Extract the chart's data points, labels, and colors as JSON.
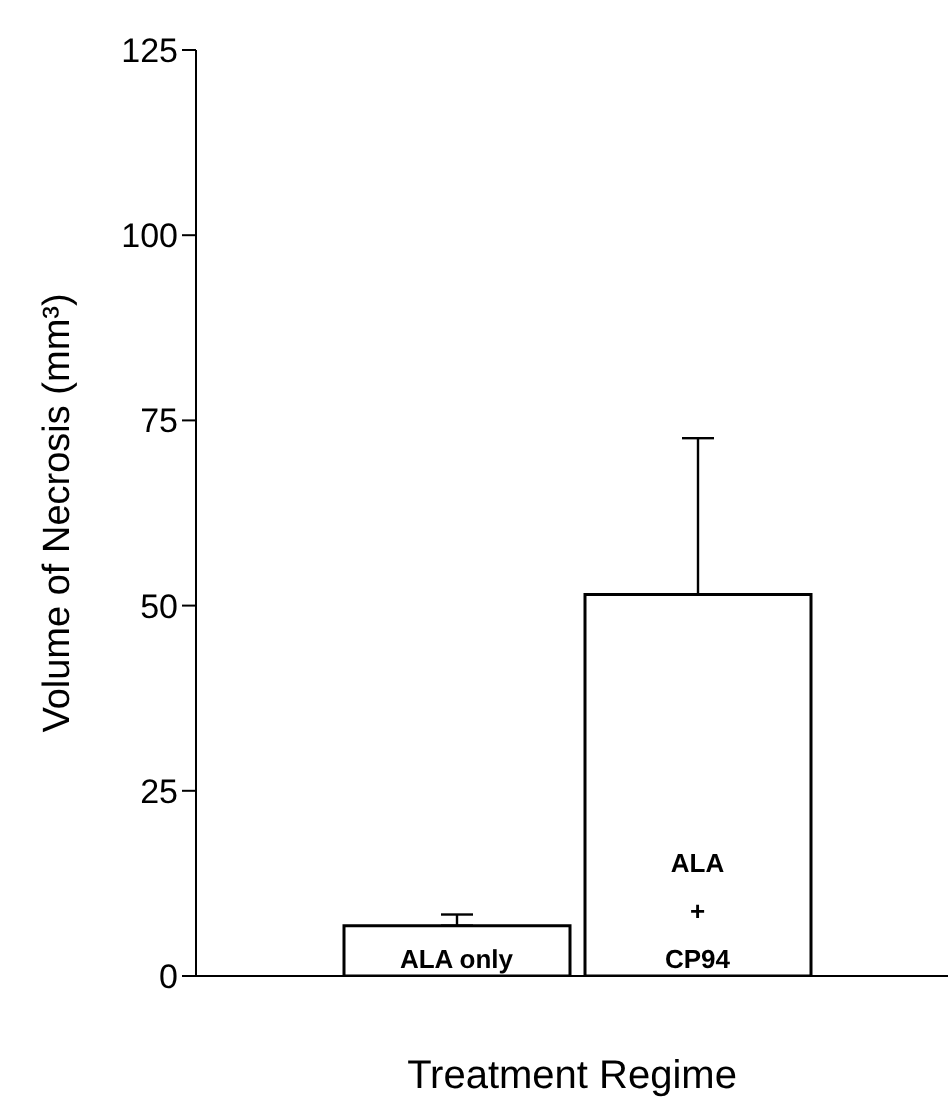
{
  "chart_data": {
    "type": "bar",
    "xlabel": "Treatment Regime",
    "ylabel": "Volume of Necrosis (mm³)",
    "categories": [
      "ALA only",
      "ALA\n+\nCP94"
    ],
    "values": [
      6.8,
      51.5
    ],
    "errors": [
      [
        6.8,
        8.3
      ],
      [
        51.5,
        72.6
      ]
    ],
    "color": "#ffffff",
    "ylim": [
      0,
      125
    ],
    "yticks": [
      0,
      25,
      50,
      75,
      100,
      125
    ]
  }
}
